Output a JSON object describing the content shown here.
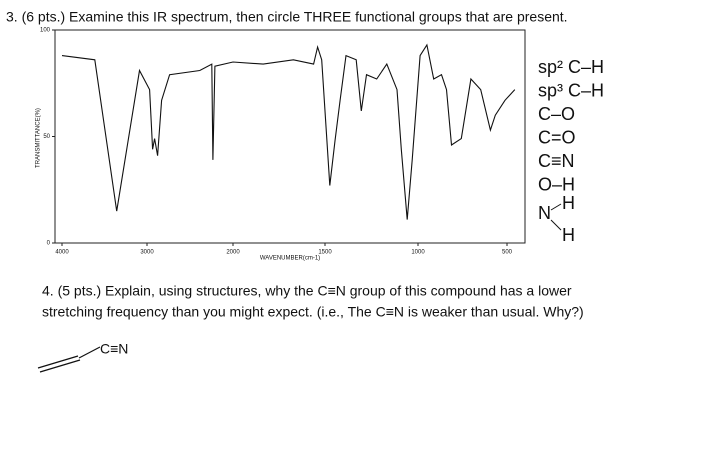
{
  "question3": {
    "text": "3. (6 pts.) Examine this IR spectrum, then circle THREE functional groups that are present.",
    "groups": [
      "sp² C–H",
      "sp³ C–H",
      "C–O",
      "C=O",
      "C≡N",
      "O–H"
    ],
    "nh": {
      "atom": "N",
      "h1": "H",
      "h2": "H"
    }
  },
  "chart_data": {
    "type": "line",
    "xlabel": "WAVENUMBER(cm-1)",
    "ylabel": "TRANSMITTANCE(%)",
    "color": "#111111",
    "x": [
      4000,
      3614,
      3357,
      3088,
      2970,
      2935,
      2912,
      2877,
      2830,
      2737,
      2386,
      2246,
      2234,
      2211,
      2000,
      1836,
      1672,
      1562,
      1540,
      1518,
      1474,
      1446,
      1419,
      1387,
      1332,
      1305,
      1277,
      1222,
      1168,
      1113,
      1090,
      1058,
      1031,
      988,
      950,
      912,
      868,
      840,
      812,
      757,
      703,
      648,
      593,
      566,
      511,
      456
    ],
    "values": [
      88,
      86,
      15,
      81,
      72,
      44,
      49,
      41,
      67,
      79,
      81,
      84,
      39,
      83,
      85,
      84,
      86,
      84,
      92,
      86,
      27,
      48,
      67,
      88,
      86,
      62,
      79,
      77,
      84,
      72,
      44,
      11,
      39,
      88,
      93,
      77,
      79,
      72,
      46,
      49,
      77,
      72,
      53,
      60,
      67,
      72
    ],
    "xlim": [
      4000,
      450
    ],
    "ylim": [
      0,
      100
    ],
    "xticks": [
      4000,
      3000,
      2000,
      1500,
      1000,
      500
    ],
    "yticks": [
      0,
      50,
      100
    ]
  },
  "question4": {
    "line1": "4. (5 pts.) Explain, using structures, why the C≡N group of this compound has a lower",
    "line2": "stretching frequency than you might expect. (i.e., The C≡N is weaker than usual. Why?)",
    "structure_label": "C≡N"
  }
}
